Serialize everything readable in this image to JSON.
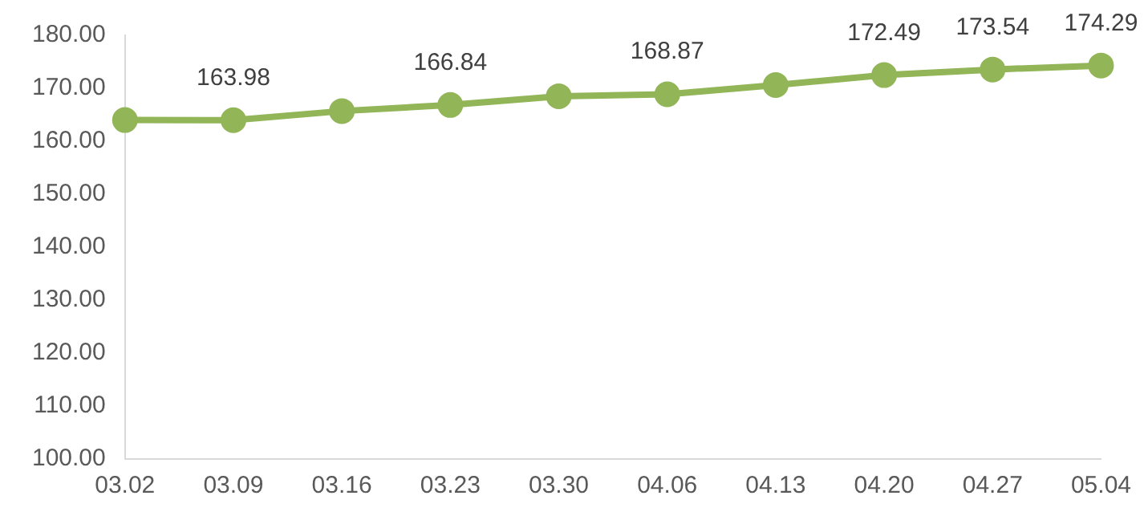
{
  "chart_data": {
    "type": "line",
    "categories": [
      "03.02",
      "03.09",
      "03.16",
      "03.23",
      "03.30",
      "04.06",
      "04.13",
      "04.20",
      "04.27",
      "05.04"
    ],
    "series": [
      {
        "color": "#92b558",
        "values": [
          164.0,
          163.98,
          165.7,
          166.84,
          168.5,
          168.87,
          170.6,
          172.49,
          173.54,
          174.29
        ],
        "value_labels": [
          null,
          "163.98",
          null,
          "166.84",
          null,
          "168.87",
          null,
          "172.49",
          "173.54",
          "174.29"
        ]
      }
    ],
    "ylim": [
      100,
      180
    ],
    "yticks": [
      "100.00",
      "110.00",
      "120.00",
      "130.00",
      "140.00",
      "150.00",
      "160.00",
      "170.00",
      "180.00"
    ],
    "grid": false,
    "legend": false,
    "marker": "circle",
    "line_style": "solid"
  }
}
